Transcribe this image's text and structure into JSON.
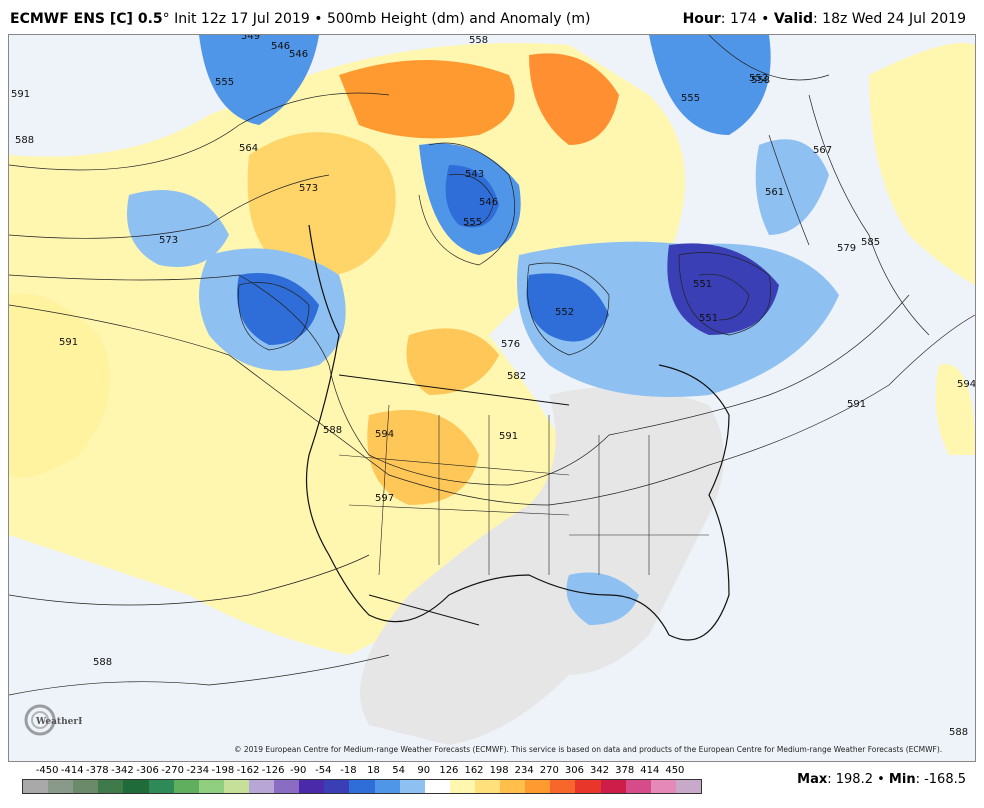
{
  "header": {
    "model": "ECMWF ENS [C] 0.5",
    "degree": "°",
    "init": "Init 12z 17 Jul 2019",
    "bullet": "•",
    "field": "500mb Height (dm) and Anomaly (m)",
    "hour_label": "Hour",
    "hour_value": ": 174",
    "valid_label": "Valid",
    "valid_value": ": 18z Wed 24 Jul 2019"
  },
  "map": {
    "contour_labels": [
      "591",
      "588",
      "573",
      "555",
      "546",
      "549",
      "564",
      "573",
      "543",
      "546",
      "555",
      "558",
      "558",
      "552",
      "555",
      "567",
      "561",
      "579",
      "585",
      "591",
      "594",
      "591",
      "551",
      "552",
      "576",
      "582",
      "588",
      "594",
      "591",
      "597",
      "588",
      "588",
      "546",
      "551"
    ]
  },
  "copyright": "© 2019 European Centre for Medium-range Weather Forecasts (ECMWF). This service is based on data and products of the European Centre for Medium-range Weather Forecasts (ECMWF).",
  "logo": {
    "text": "WeatherBELL"
  },
  "colorbar": {
    "ticks": [
      "-450",
      "-414",
      "-378",
      "-342",
      "-306",
      "-270",
      "-234",
      "-198",
      "-162",
      "-126",
      "-90",
      "-54",
      "-18",
      "18",
      "54",
      "90",
      "126",
      "162",
      "198",
      "234",
      "270",
      "306",
      "342",
      "378",
      "414",
      "450"
    ],
    "colors": [
      "#a9a9a9",
      "#8a9a8a",
      "#6a8a6a",
      "#3f7a4a",
      "#1f6b3a",
      "#2e8b57",
      "#5faf5f",
      "#8fcf7f",
      "#c6e09a",
      "#b7a6d6",
      "#8a6cc2",
      "#4a2aa8",
      "#3b3fb6",
      "#2f6ed8",
      "#4f95e8",
      "#8fc0f2",
      "#ffffff",
      "#fff6b0",
      "#ffe07a",
      "#ffbf4a",
      "#ff9a30",
      "#f7662a",
      "#e8362a",
      "#cf1d4a",
      "#d64c8a",
      "#e58ab8",
      "#c9a9c9"
    ]
  },
  "stats": {
    "max_label": "Max",
    "max_value": ": 198.2",
    "sep": " • ",
    "min_label": "Min",
    "min_value": ": -168.5"
  }
}
